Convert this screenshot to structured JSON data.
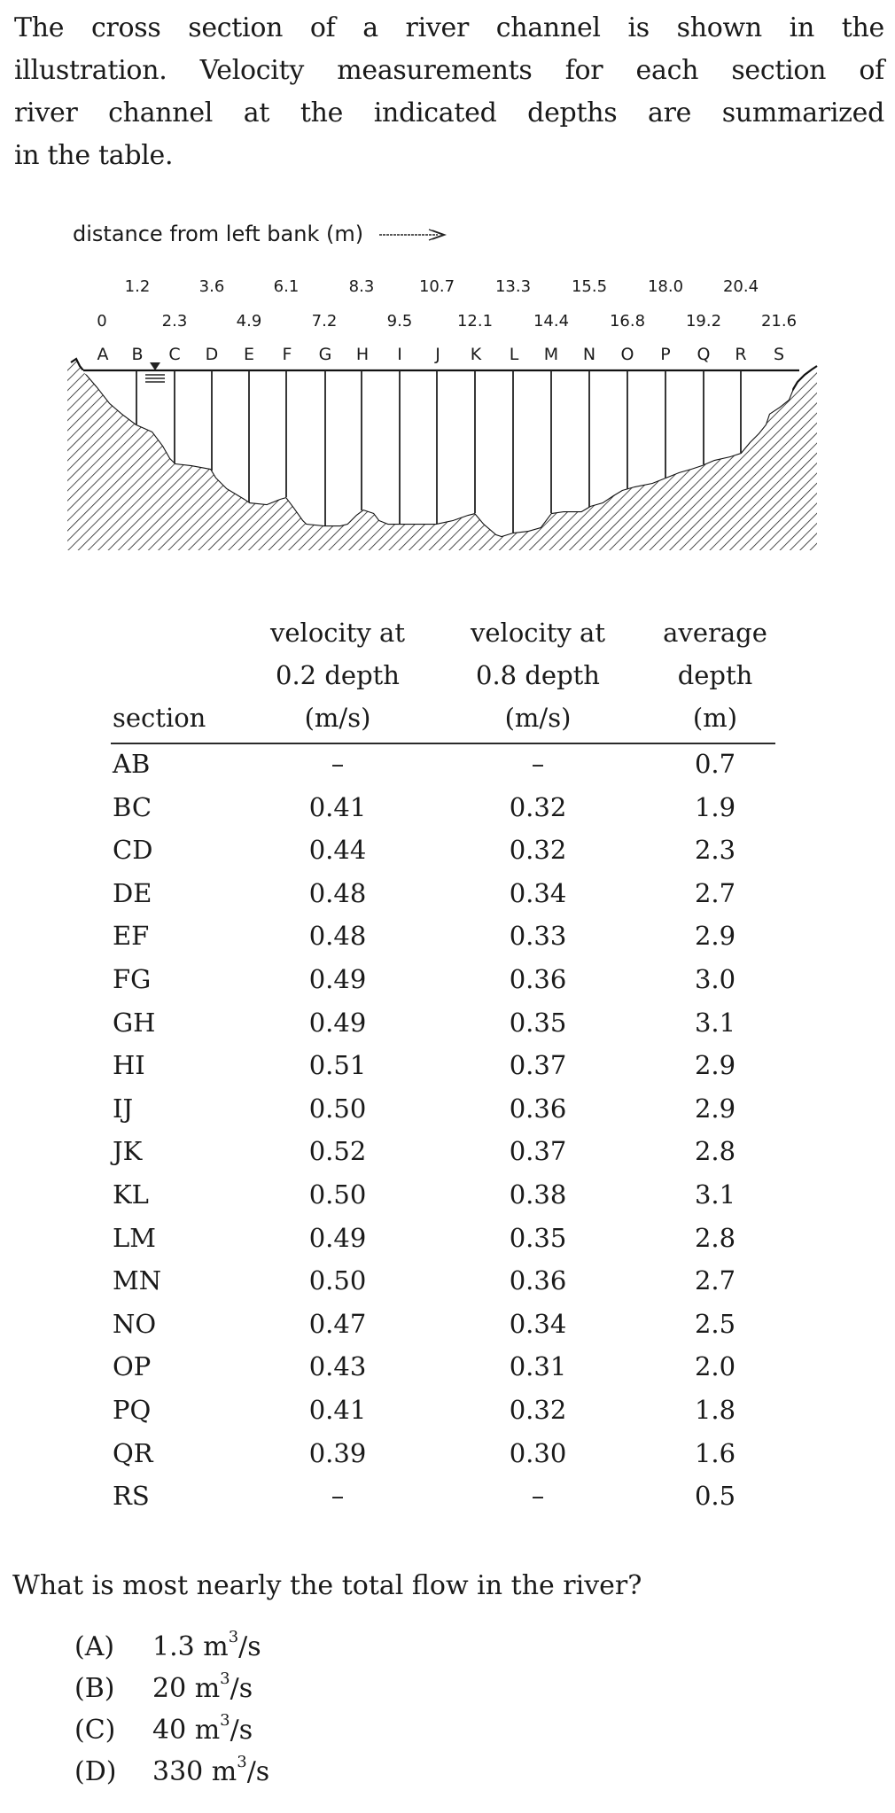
{
  "intro": {
    "lines": [
      "The cross section of a river channel is shown in the",
      "illustration. Velocity measurements for each section of",
      "river channel at the indicated depths are summarized",
      "in the table."
    ]
  },
  "figure": {
    "axis_label": "distance from left bank (m)",
    "arrow_icon": "right-arrow",
    "distances_top_row": [
      "1.2",
      "3.6",
      "6.1",
      "8.3",
      "10.7",
      "13.3",
      "15.5",
      "18.0",
      "20.4"
    ],
    "distances_bottom_row": [
      "0",
      "2.3",
      "4.9",
      "7.2",
      "9.5",
      "12.1",
      "14.4",
      "16.8",
      "19.2",
      "21.6"
    ],
    "points": [
      "A",
      "B",
      "C",
      "D",
      "E",
      "F",
      "G",
      "H",
      "I",
      "J",
      "K",
      "L",
      "M",
      "N",
      "O",
      "P",
      "Q",
      "R",
      "S"
    ],
    "water_surface_icon": "inverted-triangle-water-level"
  },
  "table": {
    "headers": {
      "section": "section",
      "v02": [
        "velocity at",
        "0.2 depth",
        "(m/s)"
      ],
      "v08": [
        "velocity at",
        "0.8 depth",
        "(m/s)"
      ],
      "depth": [
        "average",
        "depth",
        "(m)"
      ]
    },
    "rows": [
      {
        "section": "AB",
        "v02": "–",
        "v08": "–",
        "depth": "0.7"
      },
      {
        "section": "BC",
        "v02": "0.41",
        "v08": "0.32",
        "depth": "1.9"
      },
      {
        "section": "CD",
        "v02": "0.44",
        "v08": "0.32",
        "depth": "2.3"
      },
      {
        "section": "DE",
        "v02": "0.48",
        "v08": "0.34",
        "depth": "2.7"
      },
      {
        "section": "EF",
        "v02": "0.48",
        "v08": "0.33",
        "depth": "2.9"
      },
      {
        "section": "FG",
        "v02": "0.49",
        "v08": "0.36",
        "depth": "3.0"
      },
      {
        "section": "GH",
        "v02": "0.49",
        "v08": "0.35",
        "depth": "3.1"
      },
      {
        "section": "HI",
        "v02": "0.51",
        "v08": "0.37",
        "depth": "2.9"
      },
      {
        "section": "IJ",
        "v02": "0.50",
        "v08": "0.36",
        "depth": "2.9"
      },
      {
        "section": "JK",
        "v02": "0.52",
        "v08": "0.37",
        "depth": "2.8"
      },
      {
        "section": "KL",
        "v02": "0.50",
        "v08": "0.38",
        "depth": "3.1"
      },
      {
        "section": "LM",
        "v02": "0.49",
        "v08": "0.35",
        "depth": "2.8"
      },
      {
        "section": "MN",
        "v02": "0.50",
        "v08": "0.36",
        "depth": "2.7"
      },
      {
        "section": "NO",
        "v02": "0.47",
        "v08": "0.34",
        "depth": "2.5"
      },
      {
        "section": "OP",
        "v02": "0.43",
        "v08": "0.31",
        "depth": "2.0"
      },
      {
        "section": "PQ",
        "v02": "0.41",
        "v08": "0.32",
        "depth": "1.8"
      },
      {
        "section": "QR",
        "v02": "0.39",
        "v08": "0.30",
        "depth": "1.6"
      },
      {
        "section": "RS",
        "v02": "–",
        "v08": "–",
        "depth": "0.5"
      }
    ]
  },
  "question": {
    "text": "What is most nearly the total flow in the river?",
    "choices": [
      {
        "label": "(A)",
        "value": "1.3 m",
        "unit_exp": "3",
        "unit_tail": "/s"
      },
      {
        "label": "(B)",
        "value": "20 m",
        "unit_exp": "3",
        "unit_tail": "/s"
      },
      {
        "label": "(C)",
        "value": "40 m",
        "unit_exp": "3",
        "unit_tail": "/s"
      },
      {
        "label": "(D)",
        "value": "330 m",
        "unit_exp": "3",
        "unit_tail": "/s"
      }
    ]
  }
}
